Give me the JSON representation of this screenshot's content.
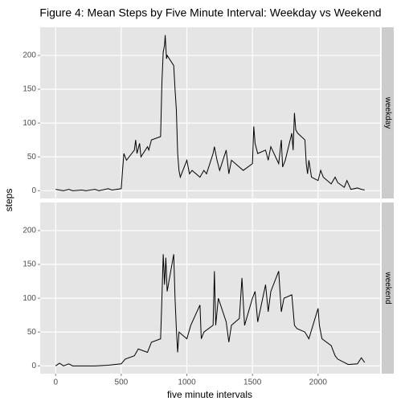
{
  "title": "Figure 4: Mean Steps by Five Minute Interval: Weekday vs Weekend",
  "x_label": "five minute intervals",
  "y_label": "steps",
  "chart_data": [
    {
      "type": "line",
      "panel": "weekday",
      "color": "#000000",
      "grid": true,
      "xlim": [
        -117.75,
        2472.75
      ],
      "ylim": [
        -11.5,
        241.5
      ],
      "xticks": [
        0,
        500,
        1000,
        1500,
        2000
      ],
      "yticks": [
        0,
        50,
        100,
        150,
        200
      ],
      "x": [
        0,
        30,
        60,
        100,
        130,
        200,
        230,
        300,
        330,
        400,
        430,
        500,
        510,
        520,
        540,
        600,
        610,
        620,
        640,
        650,
        700,
        710,
        730,
        800,
        810,
        820,
        830,
        835,
        845,
        850,
        900,
        910,
        920,
        930,
        940,
        950,
        1000,
        1020,
        1040,
        1100,
        1130,
        1150,
        1200,
        1210,
        1230,
        1250,
        1300,
        1320,
        1340,
        1400,
        1430,
        1500,
        1510,
        1520,
        1540,
        1600,
        1620,
        1640,
        1700,
        1720,
        1730,
        1750,
        1800,
        1810,
        1820,
        1830,
        1845,
        1900,
        1910,
        1920,
        1930,
        1950,
        2000,
        2020,
        2040,
        2100,
        2130,
        2150,
        2200,
        2220,
        2250,
        2300,
        2330,
        2355
      ],
      "values": [
        2,
        1,
        0,
        2,
        0,
        1,
        0,
        2,
        0,
        3,
        1,
        3,
        30,
        55,
        45,
        60,
        75,
        55,
        70,
        50,
        65,
        60,
        75,
        80,
        160,
        205,
        215,
        230,
        195,
        200,
        185,
        150,
        120,
        55,
        30,
        20,
        45,
        25,
        30,
        20,
        30,
        25,
        55,
        65,
        45,
        30,
        60,
        25,
        45,
        35,
        30,
        40,
        95,
        70,
        55,
        60,
        45,
        65,
        40,
        75,
        35,
        45,
        85,
        60,
        115,
        90,
        85,
        75,
        40,
        25,
        45,
        20,
        15,
        30,
        20,
        10,
        20,
        12,
        5,
        15,
        2,
        4,
        2,
        1
      ]
    },
    {
      "type": "line",
      "panel": "weekend",
      "color": "#000000",
      "grid": true,
      "xlim": [
        -117.75,
        2472.75
      ],
      "ylim": [
        -11.5,
        241.5
      ],
      "xticks": [
        0,
        500,
        1000,
        1500,
        2000
      ],
      "yticks": [
        0,
        50,
        100,
        150,
        200
      ],
      "x": [
        0,
        30,
        60,
        100,
        130,
        200,
        300,
        400,
        500,
        530,
        600,
        630,
        700,
        730,
        800,
        810,
        820,
        830,
        840,
        850,
        900,
        910,
        920,
        930,
        940,
        1000,
        1030,
        1100,
        1110,
        1130,
        1200,
        1210,
        1220,
        1240,
        1300,
        1320,
        1340,
        1400,
        1420,
        1440,
        1500,
        1520,
        1540,
        1600,
        1620,
        1640,
        1700,
        1720,
        1740,
        1800,
        1820,
        1840,
        1900,
        1930,
        2000,
        2010,
        2030,
        2100,
        2130,
        2150,
        2200,
        2230,
        2300,
        2330,
        2355
      ],
      "values": [
        0,
        4,
        0,
        3,
        0,
        0,
        0,
        1,
        3,
        10,
        15,
        25,
        20,
        35,
        40,
        100,
        165,
        120,
        160,
        110,
        165,
        100,
        55,
        20,
        50,
        40,
        60,
        90,
        40,
        50,
        60,
        140,
        60,
        100,
        65,
        35,
        60,
        70,
        130,
        60,
        100,
        110,
        65,
        120,
        80,
        110,
        140,
        80,
        100,
        105,
        60,
        55,
        50,
        40,
        85,
        60,
        40,
        30,
        15,
        10,
        5,
        2,
        3,
        12,
        5
      ]
    }
  ]
}
